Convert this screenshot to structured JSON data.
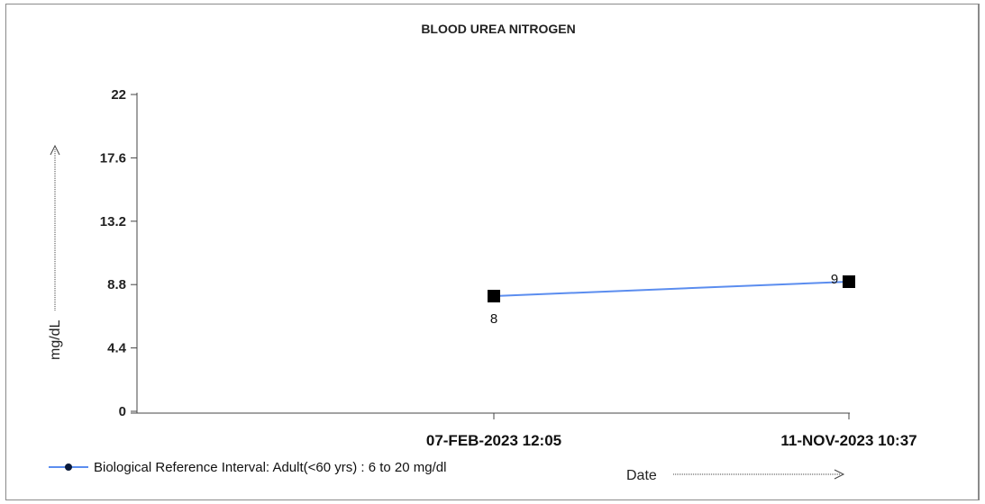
{
  "chart_data": {
    "type": "line",
    "title": "BLOOD UREA NITROGEN",
    "ylabel": "mg/dL",
    "xlabel": "Date",
    "ylim": [
      0,
      22
    ],
    "yticks": [
      "0",
      "4.4",
      "8.8",
      "13.2",
      "17.6",
      "22"
    ],
    "categories": [
      "07-FEB-2023 12:05",
      "11-NOV-2023 10:37"
    ],
    "series": [
      {
        "name": "Biological Reference Interval: Adult(<60 yrs) : 6 to 20 mg/dl",
        "values": [
          8,
          9
        ],
        "labels": [
          "8",
          "9"
        ],
        "color": "#5b8def"
      }
    ],
    "grid": false,
    "legend": "bottom-left"
  }
}
